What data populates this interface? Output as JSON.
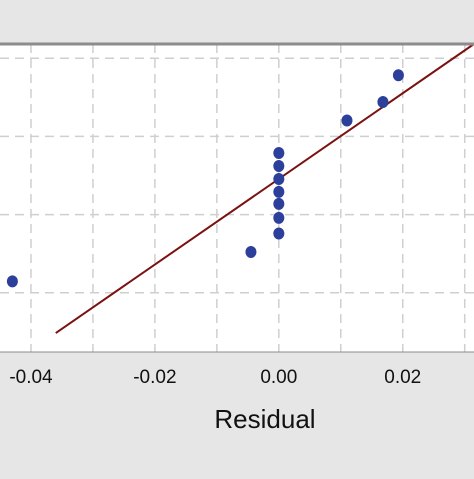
{
  "chart_data": {
    "type": "scatter",
    "title": "",
    "xlabel": "Residual",
    "ylabel": "",
    "xlim": [
      -0.045,
      0.0315
    ],
    "ylim": [
      -0.25,
      1.05
    ],
    "x_ticks": [
      -0.04,
      -0.02,
      0.0,
      0.02
    ],
    "x_tick_labels": [
      "-0.04",
      "-0.02",
      "0.00",
      "0.02"
    ],
    "x_gridlines": [
      -0.04,
      -0.03,
      -0.02,
      -0.01,
      0.0,
      0.01,
      0.02,
      0.03
    ],
    "y_gridlines": [
      0.0,
      0.33,
      0.66,
      0.99
    ],
    "grid": true,
    "points": [
      {
        "x": -0.043,
        "y": 0.048
      },
      {
        "x": -0.0045,
        "y": 0.172
      },
      {
        "x": 0.0,
        "y": 0.25
      },
      {
        "x": 0.0,
        "y": 0.316
      },
      {
        "x": 0.0,
        "y": 0.375
      },
      {
        "x": 0.0,
        "y": 0.426
      },
      {
        "x": 0.0,
        "y": 0.48
      },
      {
        "x": 0.0,
        "y": 0.535
      },
      {
        "x": 0.0,
        "y": 0.59
      },
      {
        "x": 0.011,
        "y": 0.727
      },
      {
        "x": 0.0168,
        "y": 0.805
      },
      {
        "x": 0.0193,
        "y": 0.918
      }
    ],
    "fit_line": {
      "x": [
        -0.036,
        0.0315
      ],
      "y": [
        -0.17,
        1.05
      ]
    },
    "colors": {
      "points": "#2c3f9b",
      "fit_line": "#7a1212",
      "grid": "#cfcfcf",
      "plot_background": "#ffffff",
      "outer_background": "#e6e6e6",
      "frame": "#909090"
    }
  }
}
